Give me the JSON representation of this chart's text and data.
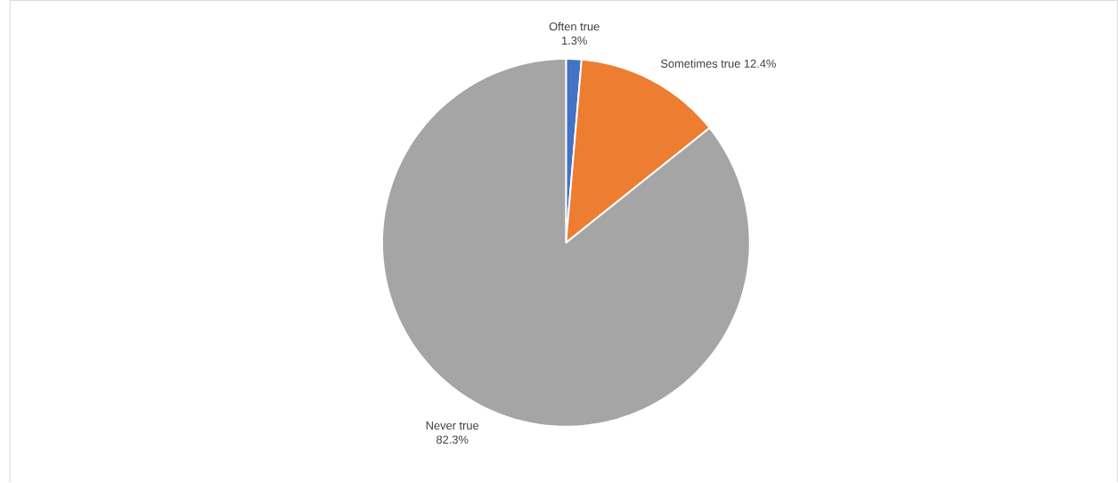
{
  "chart_data": {
    "type": "pie",
    "categories": [
      "Often true",
      "Sometimes true",
      "Never true"
    ],
    "values": [
      1.3,
      12.4,
      82.3
    ],
    "value_labels": [
      "1.3%",
      "12.4%",
      "82.3%"
    ],
    "colors": [
      "#4472c4",
      "#ed7d31",
      "#a5a5a5"
    ]
  }
}
